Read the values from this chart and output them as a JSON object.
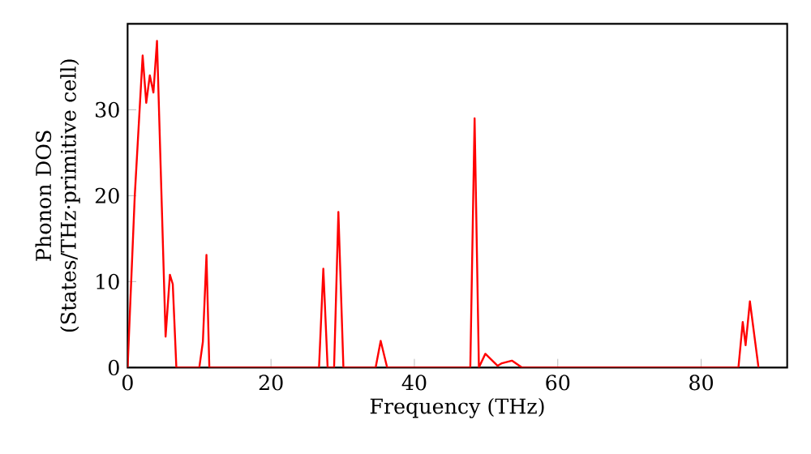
{
  "chart_data": {
    "type": "line",
    "xlabel": "Frequency (THz)",
    "ylabel": "Phonon DOS (States/THz·primitive cell)",
    "xlim": [
      0,
      92
    ],
    "ylim": [
      0,
      40
    ],
    "xticks": [
      0,
      20,
      40,
      60,
      80
    ],
    "yticks": [
      0,
      10,
      20,
      30
    ],
    "series": [
      {
        "color": "#ff0000",
        "x": [
          0,
          1.0,
          2.1,
          2.6,
          3.1,
          3.6,
          4.1,
          5.3,
          5.9,
          6.3,
          6.8,
          10.0,
          10.5,
          11.0,
          11.4,
          26.7,
          27.3,
          27.9,
          28.8,
          29.4,
          30.1,
          34.6,
          35.3,
          36.2,
          47.8,
          48.4,
          49.0,
          49.9,
          51.6,
          52.2,
          53.6,
          55.0,
          85.2,
          85.8,
          86.2,
          86.8,
          88.0
        ],
        "values": [
          0,
          20,
          36.3,
          30.8,
          34,
          32,
          38,
          3.6,
          10.8,
          9.7,
          0,
          0,
          3,
          13.1,
          0,
          0,
          11.5,
          0,
          0,
          18.1,
          0,
          0,
          3.1,
          0,
          0,
          29,
          0,
          1.6,
          0.2,
          0.5,
          0.8,
          0,
          0,
          5.3,
          2.6,
          7.7,
          0
        ]
      }
    ]
  }
}
